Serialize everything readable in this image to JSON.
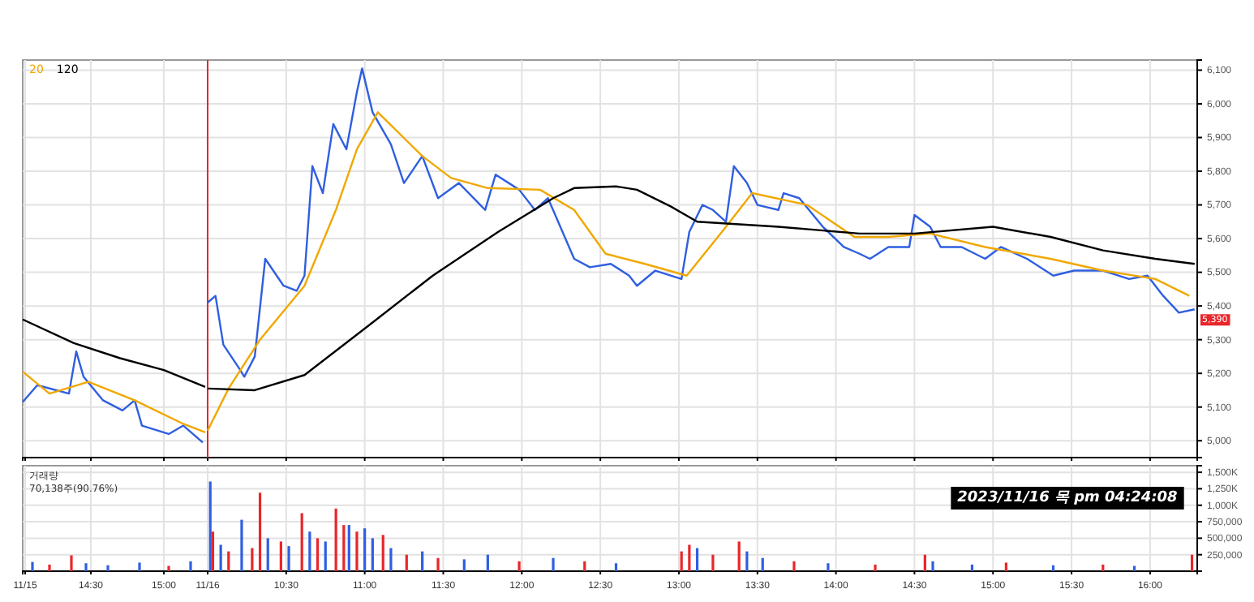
{
  "chart_data": [
    {
      "type": "line",
      "xlim": [
        "2023-11-15T14:02",
        "2023-11-15T15:18"
      ],
      "ylim": [
        4950,
        6130
      ],
      "yticks": [
        {
          "value": 5000,
          "label": null
        },
        {
          "value": 5100,
          "label": null
        },
        {
          "value": 5200,
          "label": null
        },
        {
          "value": 5300,
          "label": null
        },
        {
          "value": 5400,
          "label": null
        },
        {
          "value": 5500,
          "label": null
        },
        {
          "value": 5600,
          "label": null
        },
        {
          "value": 5700,
          "label": null
        },
        {
          "value": 5800,
          "label": null
        },
        {
          "value": 5900,
          "label": null
        },
        {
          "value": 6000,
          "label": null
        },
        {
          "value": 6100,
          "label": null
        }
      ],
      "xticks": [
        {
          "value": "2023-11-15T14:03",
          "label": null
        },
        {
          "value": "2023-11-15T14:30",
          "label": null
        },
        {
          "value": "2023-11-15T15:00",
          "label": null
        }
      ],
      "tick_labels": false,
      "grid": true,
      "legend": "top left",
      "series": [
        {
          "color": "#2f5fe0",
          "x": [
            "2023-11-15T14:02",
            "2023-11-15T14:08",
            "2023-11-15T14:21",
            "2023-11-15T14:24",
            "2023-11-15T14:27",
            "2023-11-15T14:35",
            "2023-11-15T14:43",
            "2023-11-15T14:48",
            "2023-11-15T14:51",
            "2023-11-15T15:02",
            "2023-11-15T15:08",
            "2023-11-15T15:16"
          ],
          "values": [
            5115,
            5165,
            5140,
            5265,
            5190,
            5120,
            5090,
            5120,
            5045,
            5020,
            5045,
            4995
          ]
        },
        {
          "name": "20",
          "color": "#f0a800",
          "x": [
            "2023-11-15T14:02",
            "2023-11-15T14:13",
            "2023-11-15T14:29",
            "2023-11-15T14:48",
            "2023-11-15T15:08",
            "2023-11-15T15:17"
          ],
          "values": [
            5205,
            5140,
            5175,
            5120,
            5050,
            5025
          ]
        },
        {
          "name": "120",
          "color": "#000000",
          "x": [
            "2023-11-15T14:02",
            "2023-11-15T14:23",
            "2023-11-15T14:42",
            "2023-11-15T15:00",
            "2023-11-15T15:17"
          ],
          "values": [
            5360,
            5290,
            5245,
            5210,
            5160
          ]
        }
      ]
    },
    {
      "type": "line",
      "xlim": [
        "2023-11-16T10:00",
        "2023-11-16T16:18"
      ],
      "ylim": [
        4950,
        6130
      ],
      "yticks": [
        {
          "value": 5000,
          "label": "5,000"
        },
        {
          "value": 5100,
          "label": "5,100"
        },
        {
          "value": 5200,
          "label": "5,200"
        },
        {
          "value": 5300,
          "label": "5,300"
        },
        {
          "value": 5400,
          "label": "5,400"
        },
        {
          "value": 5500,
          "label": "5,500"
        },
        {
          "value": 5600,
          "label": "5,600"
        },
        {
          "value": 5700,
          "label": "5,700"
        },
        {
          "value": 5800,
          "label": "5,800"
        },
        {
          "value": 5900,
          "label": "5,900"
        },
        {
          "value": 6000,
          "label": "6,000"
        },
        {
          "value": 6100,
          "label": "6,100"
        }
      ],
      "xticks": [
        {
          "value": "2023-11-16T10:00",
          "label": null
        },
        {
          "value": "2023-11-16T10:30",
          "label": null
        },
        {
          "value": "2023-11-16T11:00",
          "label": null
        },
        {
          "value": "2023-11-16T11:30",
          "label": null
        },
        {
          "value": "2023-11-16T12:00",
          "label": null
        },
        {
          "value": "2023-11-16T12:30",
          "label": null
        },
        {
          "value": "2023-11-16T13:00",
          "label": null
        },
        {
          "value": "2023-11-16T13:30",
          "label": null
        },
        {
          "value": "2023-11-16T14:00",
          "label": null
        },
        {
          "value": "2023-11-16T14:30",
          "label": null
        },
        {
          "value": "2023-11-16T15:00",
          "label": null
        },
        {
          "value": "2023-11-16T15:30",
          "label": null
        },
        {
          "value": "2023-11-16T16:00",
          "label": null
        }
      ],
      "tick_labels": "y",
      "grid": true,
      "series": [
        {
          "color": "#2f5fe0",
          "x": [
            "2023-11-16T10:00",
            "2023-11-16T10:03",
            "2023-11-16T10:06",
            "2023-11-16T10:12",
            "2023-11-16T10:14",
            "2023-11-16T10:18",
            "2023-11-16T10:22",
            "2023-11-16T10:29",
            "2023-11-16T10:34",
            "2023-11-16T10:37",
            "2023-11-16T10:40",
            "2023-11-16T10:44",
            "2023-11-16T10:48",
            "2023-11-16T10:53",
            "2023-11-16T10:57",
            "2023-11-16T10:59",
            "2023-11-16T11:03",
            "2023-11-16T11:10",
            "2023-11-16T11:15",
            "2023-11-16T11:22",
            "2023-11-16T11:28",
            "2023-11-16T11:36",
            "2023-11-16T11:46",
            "2023-11-16T11:50",
            "2023-11-16T11:59",
            "2023-11-16T12:05",
            "2023-11-16T12:10",
            "2023-11-16T12:20",
            "2023-11-16T12:26",
            "2023-11-16T12:34",
            "2023-11-16T12:41",
            "2023-11-16T12:44",
            "2023-11-16T12:51",
            "2023-11-16T13:01",
            "2023-11-16T13:04",
            "2023-11-16T13:09",
            "2023-11-16T13:13",
            "2023-11-16T13:18",
            "2023-11-16T13:21",
            "2023-11-16T13:26",
            "2023-11-16T13:30",
            "2023-11-16T13:38",
            "2023-11-16T13:40",
            "2023-11-16T13:46",
            "2023-11-16T13:55",
            "2023-11-16T14:03",
            "2023-11-16T14:09",
            "2023-11-16T14:13",
            "2023-11-16T14:20",
            "2023-11-16T14:28",
            "2023-11-16T14:30",
            "2023-11-16T14:36",
            "2023-11-16T14:40",
            "2023-11-16T14:48",
            "2023-11-16T14:57",
            "2023-11-16T15:03",
            "2023-11-16T15:13",
            "2023-11-16T15:23",
            "2023-11-16T15:31",
            "2023-11-16T15:42",
            "2023-11-16T15:52",
            "2023-11-16T15:59",
            "2023-11-16T16:05",
            "2023-11-16T16:11",
            "2023-11-16T16:17"
          ],
          "values": [
            5410,
            5430,
            5285,
            5215,
            5190,
            5250,
            5540,
            5460,
            5445,
            5490,
            5815,
            5735,
            5940,
            5865,
            6035,
            6105,
            5975,
            5880,
            5765,
            5845,
            5720,
            5765,
            5685,
            5790,
            5745,
            5685,
            5720,
            5540,
            5515,
            5525,
            5490,
            5460,
            5505,
            5480,
            5620,
            5700,
            5685,
            5650,
            5815,
            5765,
            5700,
            5685,
            5735,
            5720,
            5635,
            5575,
            5555,
            5540,
            5575,
            5575,
            5670,
            5635,
            5575,
            5575,
            5540,
            5575,
            5540,
            5490,
            5505,
            5505,
            5480,
            5490,
            5430,
            5380,
            5390
          ]
        },
        {
          "color": "#f0a800",
          "x": [
            "2023-11-16T10:00",
            "2023-11-16T10:08",
            "2023-11-16T10:20",
            "2023-11-16T10:37",
            "2023-11-16T10:49",
            "2023-11-16T10:57",
            "2023-11-16T11:05",
            "2023-11-16T11:22",
            "2023-11-16T11:33",
            "2023-11-16T11:47",
            "2023-11-16T12:07",
            "2023-11-16T12:20",
            "2023-11-16T12:32",
            "2023-11-16T12:47",
            "2023-11-16T13:03",
            "2023-11-16T13:18",
            "2023-11-16T13:28",
            "2023-11-16T13:49",
            "2023-11-16T14:07",
            "2023-11-16T14:20",
            "2023-11-16T14:36",
            "2023-11-16T14:57",
            "2023-11-16T15:22",
            "2023-11-16T15:42",
            "2023-11-16T16:02",
            "2023-11-16T16:15"
          ],
          "values": [
            5030,
            5155,
            5300,
            5460,
            5685,
            5865,
            5975,
            5845,
            5780,
            5750,
            5745,
            5685,
            5555,
            5525,
            5490,
            5635,
            5735,
            5700,
            5605,
            5605,
            5615,
            5575,
            5540,
            5505,
            5480,
            5430
          ]
        },
        {
          "color": "#000000",
          "x": [
            "2023-11-16T10:00",
            "2023-11-16T10:18",
            "2023-11-16T10:37",
            "2023-11-16T11:02",
            "2023-11-16T11:26",
            "2023-11-16T11:51",
            "2023-11-16T12:12",
            "2023-11-16T12:20",
            "2023-11-16T12:36",
            "2023-11-16T12:44",
            "2023-11-16T12:57",
            "2023-11-16T13:07",
            "2023-11-16T13:38",
            "2023-11-16T14:09",
            "2023-11-16T14:30",
            "2023-11-16T15:00",
            "2023-11-16T15:22",
            "2023-11-16T15:42",
            "2023-11-16T16:02",
            "2023-11-16T16:17"
          ],
          "values": [
            5155,
            5150,
            5195,
            5345,
            5490,
            5620,
            5720,
            5750,
            5755,
            5745,
            5695,
            5650,
            5635,
            5615,
            5615,
            5635,
            5605,
            5565,
            5540,
            5525
          ]
        }
      ],
      "ref_lines": [
        {
          "axis": "x",
          "value": "2023-11-16T10:00",
          "color": "#e8262a"
        }
      ],
      "annotations": [
        {
          "text": "5,390",
          "x": "2023-11-16T16:17",
          "y": 5390
        }
      ]
    },
    {
      "type": "bar",
      "title": "거래량",
      "subtitle": "70,138주(90.76%)",
      "xlim": [
        "2023-11-15T14:02",
        "2023-11-15T15:18"
      ],
      "ylim": [
        0,
        1600000
      ],
      "yticks": [
        {
          "value": 250000,
          "label": null
        },
        {
          "value": 500000,
          "label": null
        },
        {
          "value": 750000,
          "label": null
        },
        {
          "value": 1000000,
          "label": null
        },
        {
          "value": 1250000,
          "label": null
        },
        {
          "value": 1500000,
          "label": null
        }
      ],
      "xticks": [
        {
          "value": "2023-11-15T14:03",
          "label": "11/15"
        },
        {
          "value": "2023-11-15T14:30",
          "label": "14:30"
        },
        {
          "value": "2023-11-15T15:00",
          "label": "15:00"
        }
      ],
      "tick_labels": "x",
      "grid": true,
      "x": [
        "2023-11-15T14:06",
        "2023-11-15T14:13",
        "2023-11-15T14:22",
        "2023-11-15T14:28",
        "2023-11-15T14:37",
        "2023-11-15T14:50",
        "2023-11-15T15:02",
        "2023-11-15T15:11"
      ],
      "values": [
        140000,
        100000,
        240000,
        120000,
        90000,
        130000,
        80000,
        150000
      ],
      "colors": [
        "#2f5fe0",
        "#e8262a",
        "#e8262a",
        "#2f5fe0",
        "#2f5fe0",
        "#2f5fe0",
        "#e8262a",
        "#2f5fe0"
      ]
    },
    {
      "type": "bar",
      "xlim": [
        "2023-11-16T10:00",
        "2023-11-16T16:18"
      ],
      "ylim": [
        0,
        1600000
      ],
      "yticks": [
        {
          "value": 250000,
          "label": "250,000"
        },
        {
          "value": 500000,
          "label": "500,000"
        },
        {
          "value": 750000,
          "label": "750,000"
        },
        {
          "value": 1000000,
          "label": "1,000K"
        },
        {
          "value": 1250000,
          "label": "1,250K"
        },
        {
          "value": 1500000,
          "label": "1,500K"
        }
      ],
      "xticks": [
        {
          "value": "2023-11-16T10:00",
          "label": "11/16"
        },
        {
          "value": "2023-11-16T10:30",
          "label": "10:30"
        },
        {
          "value": "2023-11-16T11:00",
          "label": "11:00"
        },
        {
          "value": "2023-11-16T11:30",
          "label": "11:30"
        },
        {
          "value": "2023-11-16T12:00",
          "label": "12:00"
        },
        {
          "value": "2023-11-16T12:30",
          "label": "12:30"
        },
        {
          "value": "2023-11-16T13:00",
          "label": "13:00"
        },
        {
          "value": "2023-11-16T13:30",
          "label": "13:30"
        },
        {
          "value": "2023-11-16T14:00",
          "label": "14:00"
        },
        {
          "value": "2023-11-16T14:30",
          "label": "14:30"
        },
        {
          "value": "2023-11-16T15:00",
          "label": "15:00"
        },
        {
          "value": "2023-11-16T15:30",
          "label": "15:30"
        },
        {
          "value": "2023-11-16T16:00",
          "label": "16:00"
        }
      ],
      "grid": true,
      "x": [
        "2023-11-16T10:01",
        "2023-11-16T10:02",
        "2023-11-16T10:05",
        "2023-11-16T10:08",
        "2023-11-16T10:13",
        "2023-11-16T10:17",
        "2023-11-16T10:20",
        "2023-11-16T10:23",
        "2023-11-16T10:28",
        "2023-11-16T10:31",
        "2023-11-16T10:36",
        "2023-11-16T10:39",
        "2023-11-16T10:42",
        "2023-11-16T10:45",
        "2023-11-16T10:49",
        "2023-11-16T10:52",
        "2023-11-16T10:54",
        "2023-11-16T10:57",
        "2023-11-16T11:00",
        "2023-11-16T11:03",
        "2023-11-16T11:07",
        "2023-11-16T11:10",
        "2023-11-16T11:16",
        "2023-11-16T11:22",
        "2023-11-16T11:28",
        "2023-11-16T11:38",
        "2023-11-16T11:47",
        "2023-11-16T11:59",
        "2023-11-16T12:12",
        "2023-11-16T12:24",
        "2023-11-16T12:36",
        "2023-11-16T13:01",
        "2023-11-16T13:04",
        "2023-11-16T13:07",
        "2023-11-16T13:13",
        "2023-11-16T13:23",
        "2023-11-16T13:26",
        "2023-11-16T13:32",
        "2023-11-16T13:44",
        "2023-11-16T13:57",
        "2023-11-16T14:15",
        "2023-11-16T14:34",
        "2023-11-16T14:37",
        "2023-11-16T14:52",
        "2023-11-16T15:05",
        "2023-11-16T15:23",
        "2023-11-16T15:42",
        "2023-11-16T15:54",
        "2023-11-16T16:16"
      ],
      "values": [
        1360000,
        600000,
        400000,
        300000,
        780000,
        350000,
        1190000,
        500000,
        450000,
        380000,
        880000,
        600000,
        500000,
        450000,
        950000,
        700000,
        700000,
        600000,
        650000,
        500000,
        550000,
        350000,
        250000,
        300000,
        200000,
        180000,
        250000,
        150000,
        200000,
        150000,
        120000,
        300000,
        400000,
        350000,
        250000,
        450000,
        300000,
        200000,
        150000,
        120000,
        100000,
        250000,
        150000,
        100000,
        130000,
        90000,
        100000,
        80000,
        250000
      ],
      "colors": [
        "#2f5fe0",
        "#e8262a",
        "#2f5fe0",
        "#e8262a",
        "#2f5fe0",
        "#e8262a",
        "#e8262a",
        "#2f5fe0",
        "#e8262a",
        "#2f5fe0",
        "#e8262a",
        "#2f5fe0",
        "#e8262a",
        "#2f5fe0",
        "#e8262a",
        "#e8262a",
        "#2f5fe0",
        "#e8262a",
        "#2f5fe0",
        "#2f5fe0",
        "#e8262a",
        "#2f5fe0",
        "#e8262a",
        "#2f5fe0",
        "#e8262a",
        "#2f5fe0",
        "#2f5fe0",
        "#e8262a",
        "#2f5fe0",
        "#e8262a",
        "#2f5fe0",
        "#e8262a",
        "#e8262a",
        "#2f5fe0",
        "#e8262a",
        "#e8262a",
        "#2f5fe0",
        "#2f5fe0",
        "#e8262a",
        "#2f5fe0",
        "#e8262a",
        "#e8262a",
        "#2f5fe0",
        "#2f5fe0",
        "#e8262a",
        "#2f5fe0",
        "#e8262a",
        "#2f5fe0",
        "#e8262a"
      ],
      "annotations": [
        "2023/11/16 목 pm 04:24:08"
      ]
    }
  ]
}
